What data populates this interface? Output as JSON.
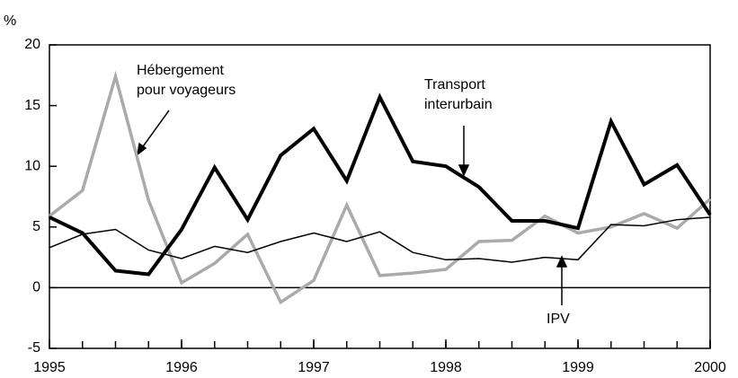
{
  "chart_data": {
    "type": "line",
    "y_unit_label": "%",
    "x": [
      1995,
      1995.25,
      1995.5,
      1995.75,
      1996,
      1996.25,
      1996.5,
      1996.75,
      1997,
      1997.25,
      1997.5,
      1997.75,
      1998,
      1998.25,
      1998.5,
      1998.75,
      1999,
      1999.25,
      1999.5,
      1999.75,
      2000
    ],
    "series": [
      {
        "color": "#aaaaaa",
        "width": 3.5,
        "values": [
          5.9,
          8.0,
          17.4,
          7.2,
          0.4,
          2.0,
          4.4,
          -1.2,
          0.6,
          6.8,
          1.0,
          1.2,
          1.5,
          3.8,
          3.9,
          5.9,
          4.5,
          5.0,
          6.1,
          4.9,
          7.3
        ]
      },
      {
        "color": "#000000",
        "width": 1.5,
        "values": [
          3.3,
          4.4,
          4.8,
          3.1,
          2.4,
          3.4,
          2.9,
          3.8,
          4.5,
          3.8,
          4.6,
          2.9,
          2.3,
          2.4,
          2.1,
          2.5,
          2.3,
          5.2,
          5.1,
          5.6,
          5.8
        ]
      },
      {
        "color": "#000000",
        "width": 4,
        "values": [
          5.8,
          4.5,
          1.4,
          1.1,
          4.8,
          9.9,
          5.6,
          10.9,
          13.1,
          8.8,
          15.7,
          10.4,
          10.0,
          8.3,
          5.5,
          5.5,
          4.9,
          13.7,
          8.5,
          10.1,
          6.0
        ]
      }
    ],
    "annotations": [
      {
        "lines": [
          "Hébergement",
          "pour voyageurs"
        ]
      },
      {
        "lines": [
          "Transport",
          "interurbain"
        ]
      },
      {
        "lines": [
          "IPV"
        ]
      }
    ],
    "xlim": [
      1995,
      2000
    ],
    "xticks": [
      1995,
      1996,
      1997,
      1998,
      1999,
      2000
    ],
    "ylim": [
      -5,
      20
    ],
    "yticks": [
      -5,
      0,
      5,
      10,
      15,
      20
    ],
    "grid": false
  }
}
